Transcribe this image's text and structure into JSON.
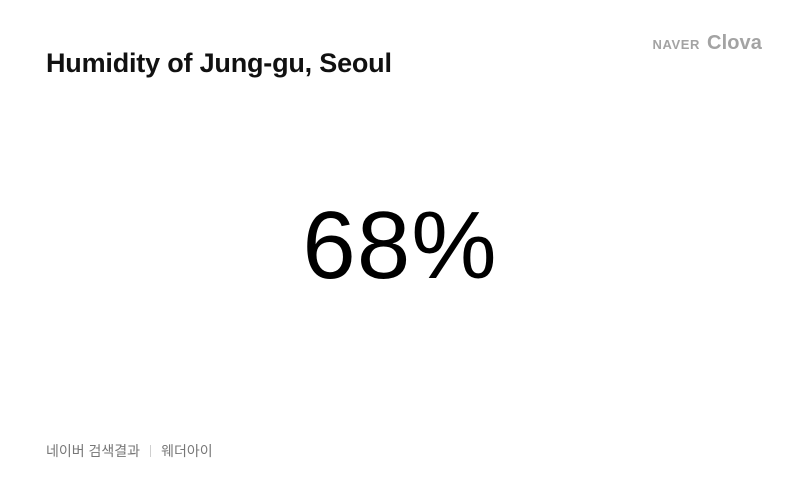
{
  "header": {
    "title": "Humidity of Jung-gu, Seoul",
    "brand_prefix": "NAVER",
    "brand_name": "Clova"
  },
  "main": {
    "humidity_value": "68%"
  },
  "footer": {
    "source": "네이버 검색결과",
    "provider": "웨더아이"
  },
  "colors": {
    "background": "#ffffff",
    "text": "#111111",
    "brand": "#a3a3a3",
    "footer_text": "#777777"
  }
}
